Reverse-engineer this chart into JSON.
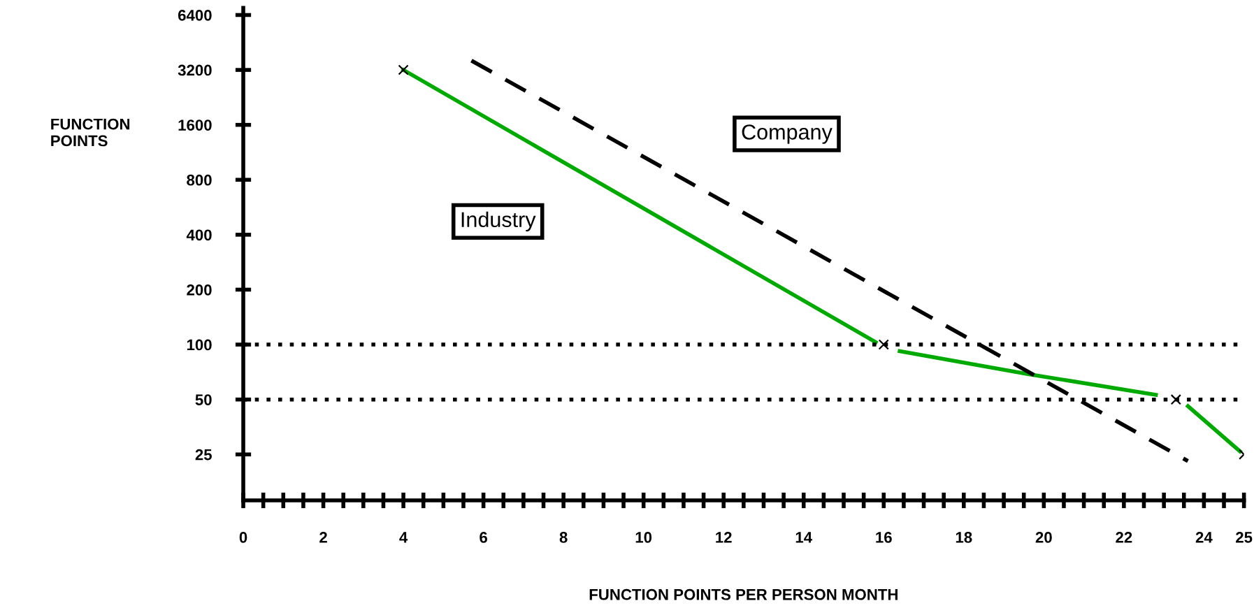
{
  "chart_data": {
    "type": "line",
    "xlabel": "FUNCTION POINTS PER PERSON MONTH",
    "ylabel": "FUNCTION\nPOINTS",
    "log": "y",
    "xlim": [
      0,
      25
    ],
    "ylim": [
      14,
      7000
    ],
    "xticks": [
      0,
      {
        "value": 0.5,
        "label": null
      },
      {
        "value": 1,
        "label": null
      },
      {
        "value": 1.5,
        "label": null
      },
      2,
      {
        "value": 2.5,
        "label": null
      },
      {
        "value": 3,
        "label": null
      },
      {
        "value": 3.5,
        "label": null
      },
      4,
      {
        "value": 4.5,
        "label": null
      },
      {
        "value": 5,
        "label": null
      },
      {
        "value": 5.5,
        "label": null
      },
      6,
      {
        "value": 6.5,
        "label": null
      },
      {
        "value": 7,
        "label": null
      },
      {
        "value": 7.5,
        "label": null
      },
      8,
      {
        "value": 8.5,
        "label": null
      },
      {
        "value": 9,
        "label": null
      },
      {
        "value": 9.5,
        "label": null
      },
      10,
      {
        "value": 10.5,
        "label": null
      },
      {
        "value": 11,
        "label": null
      },
      {
        "value": 11.5,
        "label": null
      },
      12,
      {
        "value": 12.5,
        "label": null
      },
      {
        "value": 13,
        "label": null
      },
      {
        "value": 13.5,
        "label": null
      },
      14,
      {
        "value": 14.5,
        "label": null
      },
      {
        "value": 15,
        "label": null
      },
      {
        "value": 15.5,
        "label": null
      },
      16,
      {
        "value": 16.5,
        "label": null
      },
      {
        "value": 17,
        "label": null
      },
      {
        "value": 17.5,
        "label": null
      },
      18,
      {
        "value": 18.5,
        "label": null
      },
      {
        "value": 19,
        "label": null
      },
      {
        "value": 19.5,
        "label": null
      },
      20,
      {
        "value": 20.5,
        "label": null
      },
      {
        "value": 21,
        "label": null
      },
      {
        "value": 21.5,
        "label": null
      },
      22,
      {
        "value": 22.5,
        "label": null
      },
      {
        "value": 23,
        "label": null
      },
      {
        "value": 23.5,
        "label": null
      },
      24,
      {
        "value": 24.5,
        "label": null
      },
      25
    ],
    "yticks": [
      25,
      50,
      100,
      200,
      400,
      800,
      1600,
      3200,
      6400
    ],
    "series": [
      {
        "name": "Industry",
        "color": "#00aa00",
        "line_style": "solid",
        "x": [
          4,
          15.8,
          16.1,
          16.4,
          19.6,
          22.8,
          23.2,
          23.6,
          24.9
        ],
        "values": [
          3200,
          103,
          null,
          92,
          69,
          53,
          null,
          46,
          26
        ]
      },
      {
        "name": "Company",
        "color": "#000000",
        "line_style": "dashed",
        "x": [
          5.7,
          23.6
        ],
        "values": [
          3600,
          23
        ]
      },
      {
        "type": "scatter",
        "color": "#000000",
        "marker": "cross",
        "x": [
          4,
          16,
          23.3,
          25
        ],
        "values": [
          3200,
          100,
          50,
          25
        ]
      }
    ],
    "ref_lines": [
      {
        "axis": "y",
        "value": 100,
        "label": null,
        "color": "#000000",
        "line_style": "dotted"
      },
      {
        "axis": "y",
        "value": 50,
        "label": null,
        "color": "#000000",
        "line_style": "dotted"
      }
    ],
    "grid": false,
    "legend": false
  }
}
